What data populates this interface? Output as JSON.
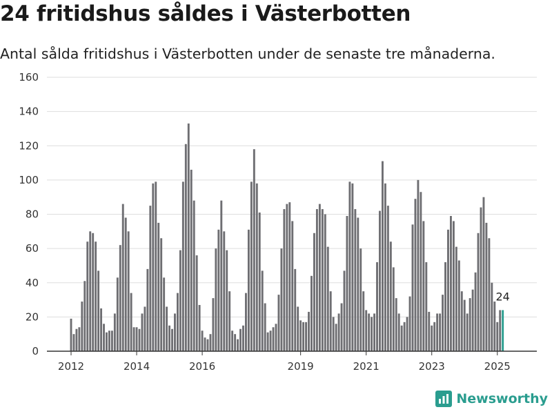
{
  "title": "24 fritidshus såldes i Västerbotten",
  "subtitle": "Antal sålda fritidshus i Västerbotten under de senaste tre månaderna.",
  "brand": {
    "name": "Newsworthy",
    "icon": "newsworthy-logo-icon",
    "color": "#2a9d8f"
  },
  "chart_data": {
    "type": "bar",
    "title": "24 fritidshus såldes i Västerbotten",
    "subtitle": "Antal sålda fritidshus i Västerbotten under de senaste tre månaderna.",
    "xlabel": "",
    "ylabel": "",
    "ylim": [
      0,
      160
    ],
    "yticks": [
      0,
      20,
      40,
      60,
      80,
      100,
      120,
      140,
      160
    ],
    "xticks": [
      {
        "label": "2012",
        "index": 0
      },
      {
        "label": "2014",
        "index": 24
      },
      {
        "label": "2016",
        "index": 48
      },
      {
        "label": "2019",
        "index": 84
      },
      {
        "label": "2021",
        "index": 108
      },
      {
        "label": "2023",
        "index": 132
      },
      {
        "label": "2025",
        "index": 156
      }
    ],
    "start": "2012-01",
    "frequency": "monthly",
    "grid": true,
    "colors": {
      "bars": "#6e6e72",
      "highlight": "#2a9d8f",
      "grid": "#dddddd",
      "axis": "#333333"
    },
    "highlight_label": "24",
    "values": [
      19,
      10,
      13,
      14,
      29,
      41,
      64,
      70,
      69,
      64,
      47,
      25,
      16,
      11,
      12,
      12,
      22,
      43,
      62,
      86,
      78,
      70,
      34,
      14,
      14,
      13,
      22,
      26,
      48,
      85,
      98,
      99,
      75,
      66,
      43,
      26,
      15,
      13,
      22,
      34,
      59,
      99,
      121,
      133,
      106,
      88,
      56,
      27,
      12,
      8,
      7,
      10,
      31,
      60,
      71,
      88,
      70,
      59,
      35,
      12,
      10,
      7,
      13,
      15,
      34,
      71,
      99,
      118,
      98,
      81,
      47,
      28,
      11,
      12,
      14,
      16,
      33,
      60,
      83,
      86,
      87,
      76,
      48,
      26,
      18,
      17,
      17,
      23,
      44,
      69,
      83,
      86,
      83,
      80,
      61,
      35,
      20,
      16,
      22,
      28,
      47,
      79,
      99,
      98,
      83,
      78,
      60,
      35,
      24,
      22,
      20,
      22,
      52,
      82,
      111,
      98,
      85,
      64,
      49,
      31,
      22,
      15,
      17,
      20,
      32,
      74,
      89,
      100,
      93,
      76,
      52,
      23,
      15,
      17,
      22,
      22,
      33,
      52,
      71,
      79,
      76,
      61,
      53,
      35,
      30,
      22,
      31,
      36,
      46,
      69,
      84,
      90,
      75,
      66,
      40,
      29,
      17,
      24,
      24
    ]
  }
}
